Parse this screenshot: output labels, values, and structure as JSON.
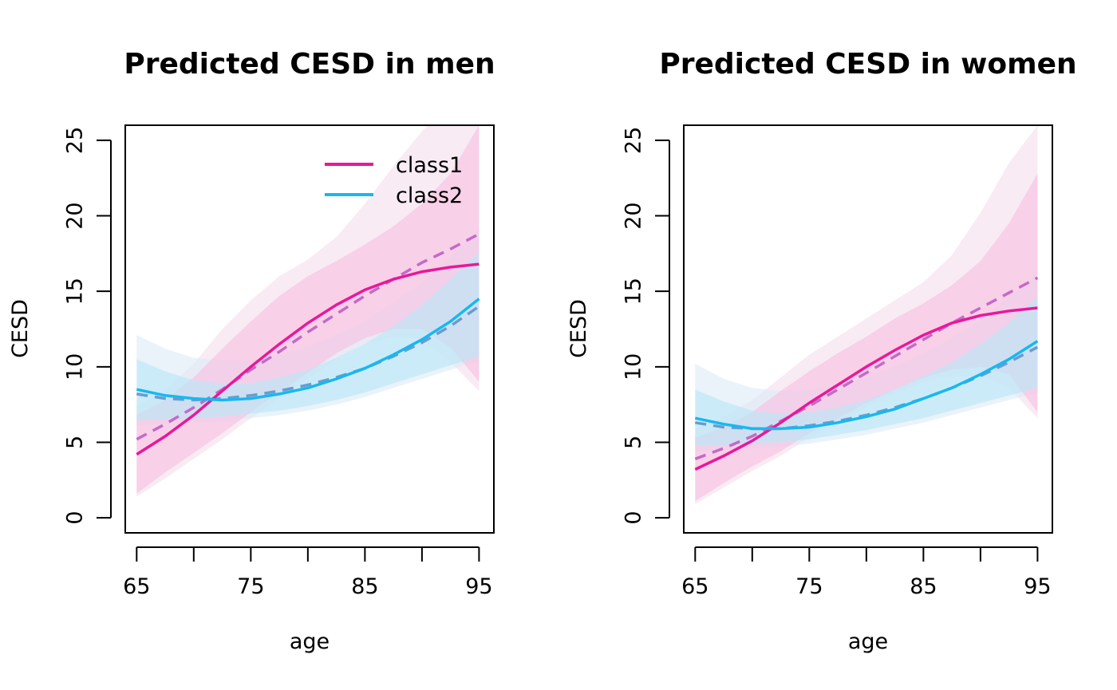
{
  "chart_data": [
    {
      "type": "line",
      "title": "Predicted CESD in men",
      "xlabel": "age",
      "ylabel": "CESD",
      "xlim": [
        64,
        96.3
      ],
      "ylim": [
        -1,
        26
      ],
      "xticks": [
        65,
        70,
        75,
        80,
        85,
        90,
        95
      ],
      "xtick_labels": [
        "65",
        "75",
        "85",
        "95"
      ],
      "yticks": [
        0,
        5,
        10,
        15,
        20,
        25
      ],
      "ytick_labels": [
        "0",
        "5",
        "10",
        "15",
        "20",
        "25"
      ],
      "legend": {
        "position": "top-right",
        "entries": [
          "class1",
          "class2"
        ]
      },
      "x": [
        65,
        67.5,
        70,
        72.5,
        75,
        77.5,
        80,
        82.5,
        85,
        87.5,
        90,
        92.5,
        95
      ],
      "series": [
        {
          "name": "class1",
          "color": "#e8189a",
          "values": [
            4.2,
            5.4,
            6.8,
            8.4,
            10.0,
            11.5,
            12.9,
            14.1,
            15.1,
            15.8,
            16.3,
            16.6,
            16.8
          ],
          "observed": [
            5.2,
            6.2,
            7.3,
            8.5,
            9.8,
            11.0,
            12.3,
            13.5,
            14.7,
            15.8,
            16.9,
            17.8,
            18.8
          ],
          "ci_inner": {
            "lower": [
              1.6,
              3.0,
              4.3,
              5.6,
              7.0,
              8.3,
              9.6,
              10.9,
              11.9,
              12.5,
              12.5,
              11.3,
              9.0
            ],
            "upper": [
              6.8,
              7.8,
              9.3,
              11.2,
              13.0,
              14.7,
              16.0,
              17.0,
              18.1,
              19.3,
              20.8,
              22.8,
              26.0
            ]
          },
          "ci_outer": {
            "lower": [
              1.4,
              2.6,
              3.9,
              5.2,
              6.6,
              7.9,
              9.2,
              10.5,
              11.5,
              12.0,
              11.8,
              10.3,
              8.4
            ],
            "upper": [
              7.4,
              8.5,
              10.2,
              12.5,
              14.4,
              16.0,
              17.1,
              18.6,
              20.8,
              23.3,
              25.6,
              27.5,
              29.0
            ]
          }
        },
        {
          "name": "class2",
          "color": "#17b8f0",
          "values": [
            8.5,
            8.1,
            7.9,
            7.8,
            7.9,
            8.2,
            8.6,
            9.2,
            9.9,
            10.8,
            11.8,
            13.0,
            14.5
          ],
          "observed": [
            8.2,
            7.9,
            7.8,
            7.9,
            8.1,
            8.4,
            8.8,
            9.3,
            9.9,
            10.7,
            11.6,
            12.7,
            14.0
          ],
          "ci_inner": {
            "lower": [
              6.5,
              6.5,
              6.6,
              6.7,
              6.9,
              7.1,
              7.4,
              7.8,
              8.3,
              8.9,
              9.5,
              10.1,
              10.7
            ],
            "upper": [
              10.5,
              9.7,
              9.1,
              8.9,
              8.9,
              9.3,
              9.8,
              10.6,
              11.5,
              12.7,
              14.1,
              15.8,
              17.6
            ]
          },
          "ci_outer": {
            "lower": [
              6.1,
              6.2,
              6.3,
              6.4,
              6.6,
              6.8,
              7.1,
              7.5,
              8.0,
              8.6,
              9.2,
              9.8,
              10.4
            ],
            "upper": [
              12.1,
              11.2,
              10.6,
              10.4,
              10.4,
              10.8,
              11.3,
              12.1,
              13.0,
              14.2,
              15.6,
              17.3,
              19.1
            ]
          }
        }
      ]
    },
    {
      "type": "line",
      "title": "Predicted CESD in women",
      "xlabel": "age",
      "ylabel": "CESD",
      "xlim": [
        64,
        96.3
      ],
      "ylim": [
        -1,
        26
      ],
      "xticks": [
        65,
        70,
        75,
        80,
        85,
        90,
        95
      ],
      "xtick_labels": [
        "65",
        "75",
        "85",
        "95"
      ],
      "yticks": [
        0,
        5,
        10,
        15,
        20,
        25
      ],
      "ytick_labels": [
        "0",
        "5",
        "10",
        "15",
        "20",
        "25"
      ],
      "x": [
        65,
        67.5,
        70,
        72.5,
        75,
        77.5,
        80,
        82.5,
        85,
        87.5,
        90,
        92.5,
        95
      ],
      "series": [
        {
          "name": "class1",
          "color": "#e8189a",
          "values": [
            3.2,
            4.1,
            5.1,
            6.3,
            7.6,
            8.8,
            10.0,
            11.1,
            12.1,
            12.9,
            13.4,
            13.7,
            13.9
          ],
          "observed": [
            3.9,
            4.6,
            5.4,
            6.4,
            7.4,
            8.5,
            9.6,
            10.7,
            11.8,
            12.9,
            13.9,
            14.9,
            15.9
          ],
          "ci_inner": {
            "lower": [
              1.1,
              2.3,
              3.4,
              4.4,
              5.6,
              6.6,
              7.6,
              8.5,
              9.3,
              9.8,
              10.0,
              9.5,
              7.0
            ],
            "upper": [
              5.3,
              6.0,
              7.0,
              8.4,
              9.7,
              10.9,
              12.0,
              13.2,
              14.2,
              15.4,
              17.0,
              19.5,
              22.8
            ]
          },
          "ci_outer": {
            "lower": [
              0.9,
              2.0,
              3.1,
              4.1,
              5.3,
              6.3,
              7.3,
              8.2,
              9.0,
              9.4,
              9.4,
              8.6,
              6.6
            ],
            "upper": [
              5.9,
              6.7,
              7.8,
              9.3,
              10.8,
              12.0,
              13.2,
              14.4,
              15.6,
              17.4,
              20.2,
              23.5,
              26.0
            ]
          }
        },
        {
          "name": "class2",
          "color": "#17b8f0",
          "values": [
            6.6,
            6.2,
            5.9,
            5.9,
            6.0,
            6.3,
            6.7,
            7.2,
            7.9,
            8.6,
            9.5,
            10.5,
            11.7
          ],
          "observed": [
            6.3,
            6.0,
            5.9,
            5.9,
            6.1,
            6.4,
            6.8,
            7.3,
            7.9,
            8.6,
            9.4,
            10.3,
            11.3
          ],
          "ci_inner": {
            "lower": [
              4.8,
              4.8,
              4.9,
              5.0,
              5.2,
              5.5,
              5.8,
              6.2,
              6.6,
              7.1,
              7.6,
              8.1,
              8.6
            ],
            "upper": [
              8.5,
              7.7,
              7.1,
              6.9,
              7.0,
              7.3,
              7.8,
              8.5,
              9.4,
              10.3,
              11.5,
              12.9,
              14.6
            ]
          },
          "ci_outer": {
            "lower": [
              4.4,
              4.5,
              4.6,
              4.7,
              4.9,
              5.2,
              5.5,
              5.9,
              6.3,
              6.8,
              7.3,
              7.8,
              8.3
            ],
            "upper": [
              10.2,
              9.2,
              8.6,
              8.4,
              8.5,
              8.8,
              9.3,
              10.0,
              10.9,
              11.9,
              13.1,
              14.6,
              16.2
            ]
          }
        }
      ]
    }
  ]
}
